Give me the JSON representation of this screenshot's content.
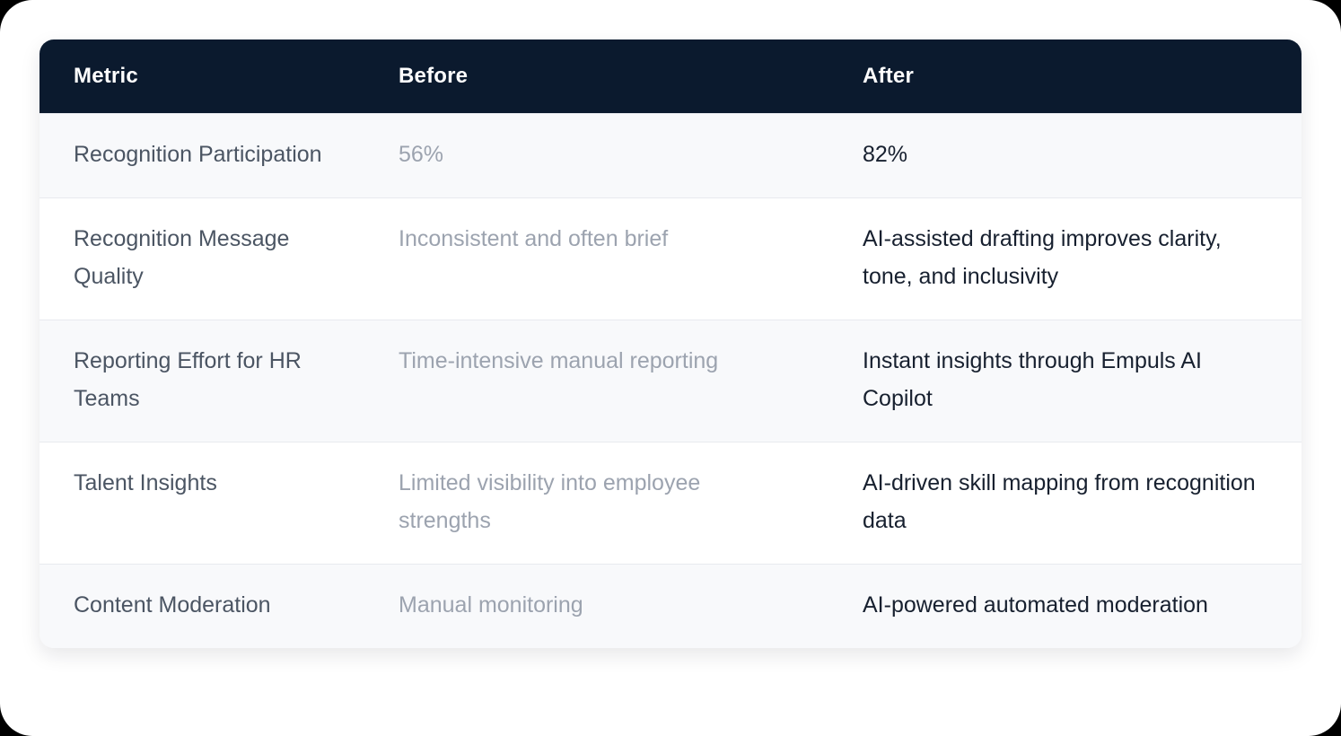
{
  "colors": {
    "header_bg": "#0b1a2e",
    "header_text": "#ffffff",
    "row_odd_bg": "#f8f9fb",
    "row_even_bg": "#ffffff",
    "row_border": "#e8eaef",
    "metric_text": "#4b5563",
    "before_text": "#9ca3af",
    "after_text": "#17202f"
  },
  "table": {
    "columns": [
      "Metric",
      "Before",
      "After"
    ],
    "rows": [
      {
        "metric": "Recognition Participation",
        "before": "56%",
        "after": "82%"
      },
      {
        "metric": "Recognition Message Quality",
        "before": "Inconsistent and often brief",
        "after": "AI-assisted drafting improves clarity, tone, and inclusivity"
      },
      {
        "metric": "Reporting Effort for HR Teams",
        "before": "Time-intensive manual reporting",
        "after": "Instant insights through Empuls AI Copilot"
      },
      {
        "metric": "Talent Insights",
        "before": "Limited visibility into employee strengths",
        "after": "AI-driven skill mapping from recognition data"
      },
      {
        "metric": "Content Moderation",
        "before": "Manual monitoring",
        "after": "AI-powered automated moderation"
      }
    ]
  },
  "chart_data": {
    "type": "table",
    "title": "",
    "columns": [
      "Metric",
      "Before",
      "After"
    ],
    "rows": [
      [
        "Recognition Participation",
        "56%",
        "82%"
      ],
      [
        "Recognition Message Quality",
        "Inconsistent and often brief",
        "AI-assisted drafting improves clarity, tone, and inclusivity"
      ],
      [
        "Reporting Effort for HR Teams",
        "Time-intensive manual reporting",
        "Instant insights through Empuls AI Copilot"
      ],
      [
        "Talent Insights",
        "Limited visibility into employee strengths",
        "AI-driven skill mapping from recognition data"
      ],
      [
        "Content Moderation",
        "Manual monitoring",
        "AI-powered automated moderation"
      ]
    ],
    "layout_hints": {
      "header_style": "dark navy band, white bold labels",
      "zebra_striping": "odd rows light gray, even rows white",
      "before_column_muted": true,
      "after_column_emphasized": true
    }
  }
}
